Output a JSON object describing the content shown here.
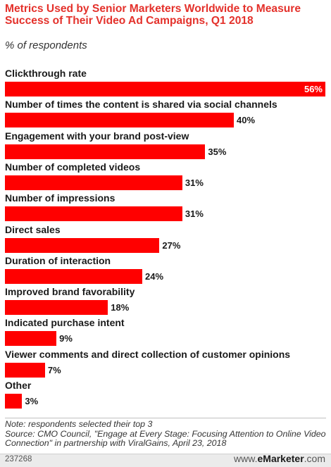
{
  "header": {
    "title": "Metrics Used by Senior Marketers Worldwide to Measure Success of Their Video Ad Campaigns, Q1 2018",
    "subtitle": "% of respondents"
  },
  "chart_data": {
    "type": "bar",
    "orientation": "horizontal",
    "categories": [
      "Clickthrough rate",
      "Number of times the content is shared via social channels",
      "Engagement with your brand post-view",
      "Number of completed videos",
      "Number of impressions",
      "Direct sales",
      "Duration of interaction",
      "Improved brand favorability",
      "Indicated purchase intent",
      "Viewer comments and direct collection of customer opinions",
      "Other"
    ],
    "values": [
      56,
      40,
      35,
      31,
      31,
      27,
      24,
      18,
      9,
      7,
      3
    ],
    "value_labels": [
      "56%",
      "40%",
      "35%",
      "31%",
      "31%",
      "27%",
      "24%",
      "18%",
      "9%",
      "7%",
      "3%"
    ],
    "xlim": [
      0,
      56
    ],
    "grid": false,
    "bar_color": "#ff0000"
  },
  "footer": {
    "note": "Note: respondents selected their top 3",
    "source": "Source: CMO Council, \"Engage at Every Stage: Focusing Attention to Online Video Connection\" in partnership with ViralGains, April 23, 2018",
    "chart_id": "237268",
    "logo_domain": "www.",
    "logo_brand": "eMarketer",
    "logo_suffix": ".com"
  }
}
